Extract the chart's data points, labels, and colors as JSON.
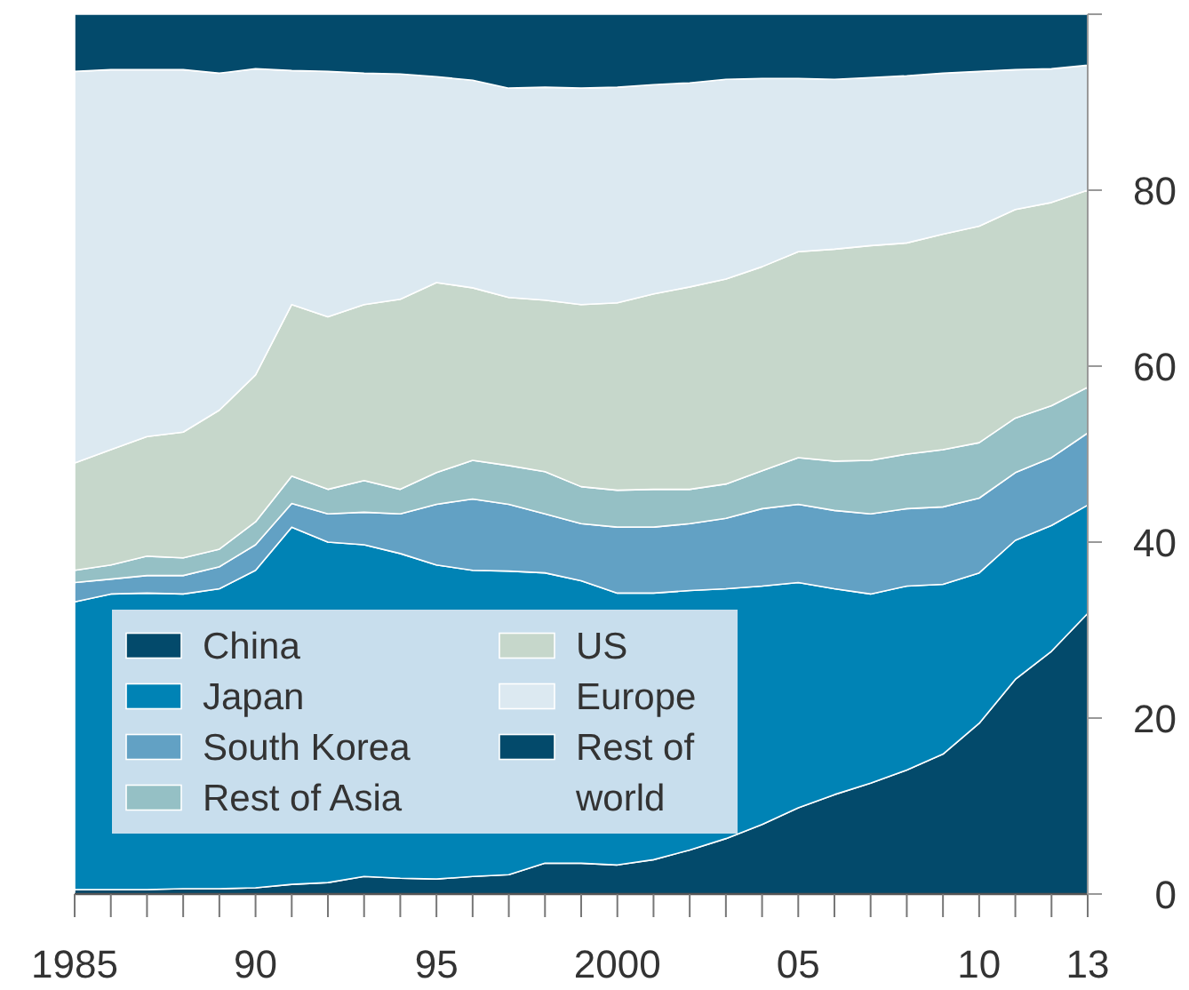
{
  "chart_data": {
    "type": "area",
    "stacked": true,
    "x": [
      1985,
      1986,
      1987,
      1988,
      1989,
      1990,
      1991,
      1992,
      1993,
      1994,
      1995,
      1996,
      1997,
      1998,
      1999,
      2000,
      2001,
      2002,
      2003,
      2004,
      2005,
      2006,
      2007,
      2008,
      2009,
      2010,
      2011,
      2012,
      2013
    ],
    "series": [
      {
        "name": "China",
        "color": "#034a6b",
        "values": [
          0.5,
          0.5,
          0.5,
          0.6,
          0.6,
          0.7,
          1.1,
          1.3,
          2,
          1.8,
          1.7,
          2,
          2.2,
          3.5,
          3.5,
          3.3,
          3.9,
          5,
          6.3,
          7.9,
          9.8,
          11.3,
          12.6,
          14.1,
          15.9,
          19.4,
          24.4,
          27.6,
          31.9
        ]
      },
      {
        "name": "Japan",
        "color": "#0083b5",
        "values": [
          32.7,
          33.6,
          33.7,
          33.5,
          34.1,
          36.1,
          40.6,
          38.7,
          37.7,
          36.9,
          35.7,
          34.8,
          34.5,
          33,
          32.1,
          30.9,
          30.3,
          29.5,
          28.4,
          27.1,
          25.6,
          23.4,
          21.5,
          20.9,
          19.3,
          17.1,
          15.8,
          14.3,
          12.3
        ]
      },
      {
        "name": "South Korea",
        "color": "#62a1c4",
        "values": [
          2.2,
          1.7,
          2,
          2.1,
          2.5,
          2.9,
          2.7,
          3.2,
          3.7,
          4.5,
          6.9,
          8.1,
          7.6,
          6.7,
          6.5,
          7.5,
          7.5,
          7.6,
          8,
          8.8,
          8.9,
          8.9,
          9.1,
          8.8,
          8.8,
          8.5,
          7.7,
          7.7,
          8.2
        ]
      },
      {
        "name": "Rest of Asia",
        "color": "#95c0c5",
        "values": [
          1.4,
          1.6,
          2.2,
          2,
          2,
          2.6,
          3.1,
          2.8,
          3.6,
          2.8,
          3.6,
          4.4,
          4.4,
          4.8,
          4.2,
          4.2,
          4.3,
          3.9,
          3.9,
          4.3,
          5.3,
          5.6,
          6.1,
          6.2,
          6.5,
          6.3,
          6.2,
          5.9,
          5.2
        ]
      },
      {
        "name": "US",
        "color": "#c6d7cb",
        "values": [
          12.2,
          13.1,
          13.6,
          14.3,
          15.8,
          16.7,
          19.5,
          19.6,
          20,
          21.6,
          21.6,
          19.6,
          19.1,
          19.5,
          20.7,
          21.3,
          22.2,
          23,
          23.3,
          23.2,
          23.4,
          24.1,
          24.4,
          24,
          24.5,
          24.6,
          23.7,
          23.1,
          22.4
        ]
      },
      {
        "name": "Europe",
        "color": "#dce9f1",
        "values": [
          44.5,
          43.2,
          41.7,
          41.2,
          38.3,
          34.8,
          26.6,
          27.9,
          26.3,
          25.6,
          23.4,
          23.6,
          23.8,
          24.2,
          24.6,
          24.5,
          23.8,
          23.2,
          22.7,
          21.4,
          19.7,
          19.3,
          19.1,
          19,
          18.3,
          17.6,
          15.9,
          15.2,
          14.2
        ]
      },
      {
        "name": "Rest of world",
        "color": "#034a6b",
        "values": [
          6.5,
          6.3,
          6.3,
          6.3,
          6.7,
          6.2,
          6.4,
          6.5,
          6.7,
          6.8,
          7.1,
          7.5,
          8.4,
          8.3,
          8.4,
          8.3,
          8,
          7.8,
          7.4,
          7.3,
          7.3,
          7.4,
          7.2,
          7,
          6.7,
          6.5,
          6.3,
          6.2,
          5.8
        ]
      }
    ],
    "xlim": [
      1985,
      2013
    ],
    "xticks": [
      {
        "value": 1985,
        "label": "1985"
      },
      {
        "value": 1986,
        "label": null
      },
      {
        "value": 1987,
        "label": null
      },
      {
        "value": 1988,
        "label": null
      },
      {
        "value": 1989,
        "label": null
      },
      {
        "value": 1990,
        "label": "90"
      },
      {
        "value": 1991,
        "label": null
      },
      {
        "value": 1992,
        "label": null
      },
      {
        "value": 1993,
        "label": null
      },
      {
        "value": 1994,
        "label": null
      },
      {
        "value": 1995,
        "label": "95"
      },
      {
        "value": 1996,
        "label": null
      },
      {
        "value": 1997,
        "label": null
      },
      {
        "value": 1998,
        "label": null
      },
      {
        "value": 1999,
        "label": null
      },
      {
        "value": 2000,
        "label": "2000"
      },
      {
        "value": 2001,
        "label": null
      },
      {
        "value": 2002,
        "label": null
      },
      {
        "value": 2003,
        "label": null
      },
      {
        "value": 2004,
        "label": null
      },
      {
        "value": 2005,
        "label": "05"
      },
      {
        "value": 2006,
        "label": null
      },
      {
        "value": 2007,
        "label": null
      },
      {
        "value": 2008,
        "label": null
      },
      {
        "value": 2009,
        "label": null
      },
      {
        "value": 2010,
        "label": "10"
      },
      {
        "value": 2011,
        "label": null
      },
      {
        "value": 2012,
        "label": null
      },
      {
        "value": 2013,
        "label": "13"
      }
    ],
    "ylim": [
      0,
      100
    ],
    "yticks": [
      0,
      20,
      40,
      60,
      80,
      {
        "value": 100,
        "label": null
      }
    ],
    "legend": "bottom left"
  }
}
